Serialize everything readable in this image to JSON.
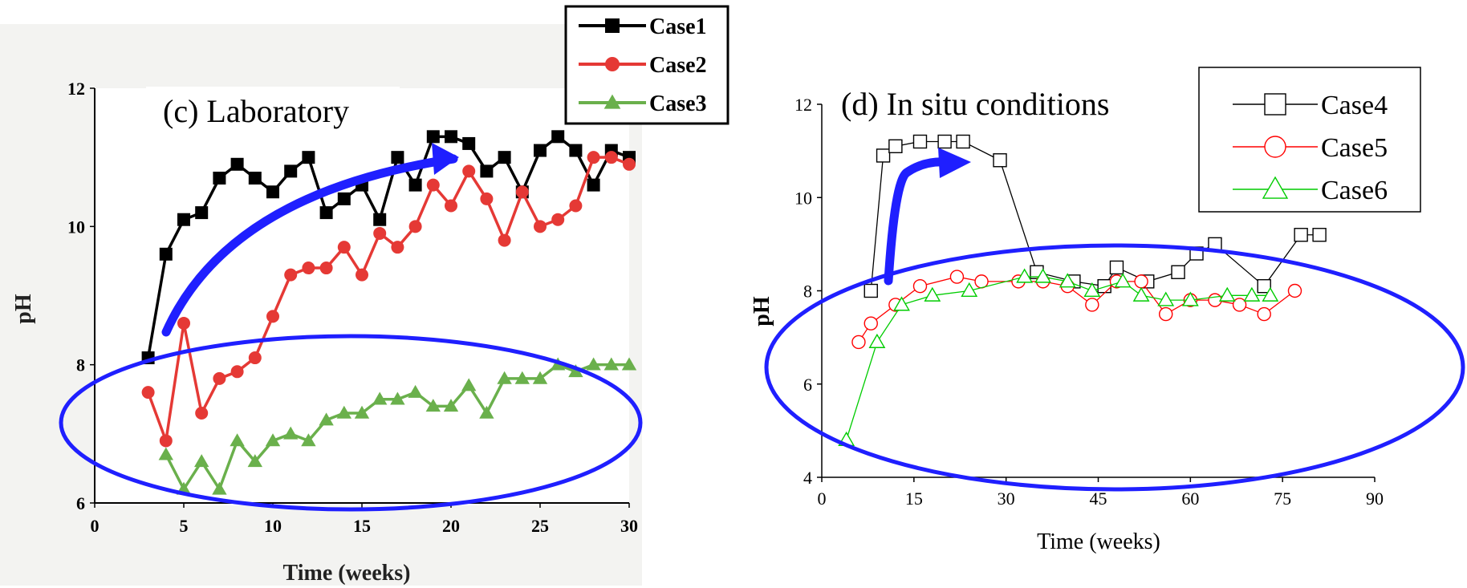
{
  "chart_data": [
    {
      "type": "line",
      "title": "(c) Laboratory",
      "xlabel": "Time (weeks)",
      "ylabel": "pH",
      "xlim": [
        0,
        30
      ],
      "ylim": [
        6,
        12
      ],
      "xticks": [
        "0",
        "5",
        "10",
        "15",
        "20",
        "25",
        "30"
      ],
      "yticks": [
        "6",
        "8",
        "10",
        "12"
      ],
      "legend_position": "top-right, outside plot",
      "grid": false,
      "series": [
        {
          "name": "Case1",
          "color": "#000000",
          "marker": "filled-square",
          "x": [
            3,
            4,
            5,
            6,
            7,
            8,
            9,
            10,
            11,
            12,
            13,
            14,
            15,
            16,
            17,
            18,
            19,
            20,
            21,
            22,
            23,
            24,
            25,
            26,
            27,
            28,
            29,
            30
          ],
          "y": [
            8.1,
            9.6,
            10.1,
            10.2,
            10.7,
            10.9,
            10.7,
            10.5,
            10.8,
            11.0,
            10.2,
            10.4,
            10.6,
            10.1,
            11.0,
            10.6,
            11.3,
            11.3,
            11.2,
            10.8,
            11.0,
            10.5,
            11.1,
            11.3,
            11.1,
            10.6,
            11.1,
            11.0
          ]
        },
        {
          "name": "Case2",
          "color": "#e53935",
          "marker": "filled-circle",
          "x": [
            3,
            4,
            5,
            6,
            7,
            8,
            9,
            10,
            11,
            12,
            13,
            14,
            15,
            16,
            17,
            18,
            19,
            20,
            21,
            22,
            23,
            24,
            25,
            26,
            27,
            28,
            29,
            30
          ],
          "y": [
            7.6,
            6.9,
            8.6,
            7.3,
            7.8,
            7.9,
            8.1,
            8.7,
            9.3,
            9.4,
            9.4,
            9.7,
            9.3,
            9.9,
            9.7,
            10.0,
            10.6,
            10.3,
            10.8,
            10.4,
            9.8,
            10.5,
            10.0,
            10.1,
            10.3,
            11.0,
            11.0,
            10.9
          ]
        },
        {
          "name": "Case3",
          "color": "#6ab04c",
          "marker": "filled-triangle",
          "x": [
            4,
            5,
            6,
            7,
            8,
            9,
            10,
            11,
            12,
            13,
            14,
            15,
            16,
            17,
            18,
            19,
            20,
            21,
            22,
            23,
            24,
            25,
            26,
            27,
            28,
            29,
            30
          ],
          "y": [
            6.7,
            6.2,
            6.6,
            6.2,
            6.9,
            6.6,
            6.9,
            7.0,
            6.9,
            7.2,
            7.3,
            7.3,
            7.5,
            7.5,
            7.6,
            7.4,
            7.4,
            7.7,
            7.3,
            7.8,
            7.8,
            7.8,
            8.0,
            7.9,
            8.0,
            8.0,
            8.0
          ]
        }
      ],
      "annotations": [
        {
          "kind": "arrow",
          "color": "#0000ff",
          "description": "rising trend"
        },
        {
          "kind": "ellipse",
          "color": "#0000ff",
          "description": "Case3 low pH region"
        }
      ]
    },
    {
      "type": "line",
      "title": "(d) In situ conditions",
      "xlabel": "Time (weeks)",
      "ylabel": "pH",
      "xlim": [
        0,
        90
      ],
      "ylim": [
        4,
        12
      ],
      "xticks": [
        "0",
        "15",
        "30",
        "45",
        "60",
        "75",
        "90"
      ],
      "yticks": [
        "4",
        "6",
        "8",
        "10",
        "12"
      ],
      "legend_position": "top-right, inside plot",
      "grid": false,
      "series": [
        {
          "name": "Case4",
          "color": "#000000",
          "marker": "open-square",
          "x": [
            8,
            10,
            12,
            16,
            20,
            23,
            29,
            35,
            41,
            46,
            48,
            53,
            58,
            61,
            64,
            72,
            78,
            81
          ],
          "y": [
            8.0,
            10.9,
            11.1,
            11.2,
            11.2,
            11.2,
            10.8,
            8.4,
            8.2,
            8.1,
            8.5,
            8.2,
            8.4,
            8.8,
            9.0,
            8.1,
            9.2,
            9.2
          ]
        },
        {
          "name": "Case5",
          "color": "#ff0000",
          "marker": "open-circle",
          "x": [
            6,
            8,
            12,
            16,
            22,
            26,
            32,
            36,
            40,
            44,
            48,
            52,
            56,
            60,
            64,
            68,
            72,
            77
          ],
          "y": [
            6.9,
            7.3,
            7.7,
            8.1,
            8.3,
            8.2,
            8.2,
            8.2,
            8.1,
            7.7,
            8.2,
            8.2,
            7.5,
            7.8,
            7.8,
            7.7,
            7.5,
            8.0
          ]
        },
        {
          "name": "Case6",
          "color": "#00cc00",
          "marker": "open-triangle",
          "x": [
            4,
            9,
            13,
            18,
            24,
            33,
            36,
            40,
            44,
            49,
            52,
            56,
            60,
            66,
            70,
            73
          ],
          "y": [
            4.8,
            6.9,
            7.7,
            7.9,
            8.0,
            8.3,
            8.3,
            8.2,
            8.0,
            8.2,
            7.9,
            7.8,
            7.8,
            7.9,
            7.9,
            7.9
          ]
        }
      ],
      "annotations": [
        {
          "kind": "arrow",
          "color": "#0000ff",
          "description": "sharp early rise"
        },
        {
          "kind": "ellipse",
          "color": "#0000ff",
          "description": "converged region around pH 8"
        }
      ]
    }
  ]
}
